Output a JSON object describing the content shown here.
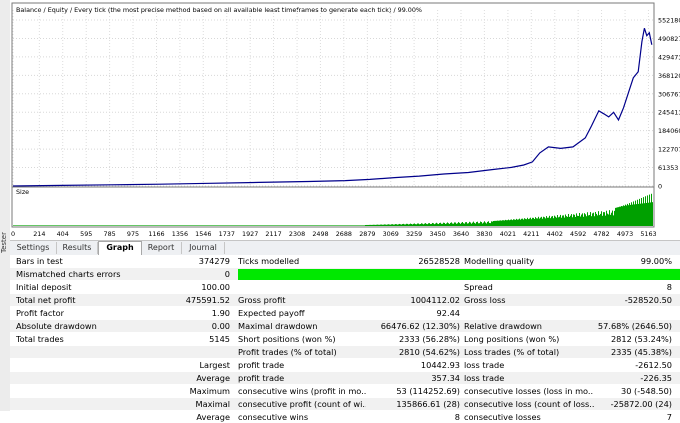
{
  "side_label": "Tester",
  "graph": {
    "header": "Balance / Equity / Every tick (the most precise method based on all available least timeframes to generate each tick) / 99.00%",
    "y_ticks": [
      "552180",
      "490827",
      "429473",
      "368120",
      "306767",
      "245413",
      "184060",
      "122707",
      "61353",
      "0"
    ],
    "size_label": "Size",
    "x_ticks": [
      "0",
      "214",
      "404",
      "595",
      "785",
      "975",
      "1166",
      "1356",
      "1546",
      "1737",
      "1927",
      "2117",
      "2308",
      "2498",
      "2688",
      "2879",
      "3069",
      "3259",
      "3450",
      "3640",
      "3830",
      "4021",
      "4211",
      "4402",
      "4592",
      "4782",
      "4973",
      "5163"
    ]
  },
  "chart_data": {
    "type": "line",
    "title": "Balance / Equity / Every tick (the most precise method based on all available least timeframes to generate each tick) / 99.00%",
    "xlim": [
      0,
      5200
    ],
    "ylim": [
      0,
      552180
    ],
    "series": [
      {
        "name": "Balance",
        "color": "#00008b",
        "x": [
          0,
          400,
          800,
          1200,
          1600,
          2000,
          2400,
          2700,
          2900,
          3100,
          3300,
          3500,
          3700,
          3900,
          4050,
          4150,
          4220,
          4280,
          4350,
          4450,
          4550,
          4650,
          4700,
          4760,
          4800,
          4840,
          4880,
          4920,
          4960,
          5000,
          5040,
          5080,
          5110,
          5130,
          5150,
          5170,
          5190
        ],
        "y": [
          0,
          2000,
          4000,
          6000,
          9000,
          12000,
          15000,
          18000,
          22000,
          28000,
          33000,
          40000,
          45000,
          55000,
          62000,
          70000,
          80000,
          110000,
          130000,
          125000,
          130000,
          160000,
          200000,
          250000,
          240000,
          230000,
          245000,
          220000,
          260000,
          310000,
          360000,
          380000,
          480000,
          525000,
          500000,
          510000,
          470000
        ]
      }
    ],
    "subchart": {
      "name": "Size",
      "color": "#00a000",
      "note": "position size histogram"
    }
  },
  "tabs": [
    {
      "label": "Settings",
      "active": false
    },
    {
      "label": "Results",
      "active": false
    },
    {
      "label": "Graph",
      "active": true
    },
    {
      "label": "Report",
      "active": false
    },
    {
      "label": "Journal",
      "active": false
    }
  ],
  "report": {
    "bars_in_test_label": "Bars in test",
    "bars_in_test": "374279",
    "ticks_modelled_label": "Ticks modelled",
    "ticks_modelled": "26528528",
    "modelling_quality_label": "Modelling quality",
    "modelling_quality": "99.00%",
    "mismatched_label": "Mismatched charts errors",
    "mismatched": "0",
    "initial_deposit_label": "Initial deposit",
    "initial_deposit": "100.00",
    "spread_label": "Spread",
    "spread": "8",
    "total_net_profit_label": "Total net profit",
    "total_net_profit": "475591.52",
    "gross_profit_label": "Gross profit",
    "gross_profit": "1004112.02",
    "gross_loss_label": "Gross loss",
    "gross_loss": "-528520.50",
    "profit_factor_label": "Profit factor",
    "profit_factor": "1.90",
    "expected_payoff_label": "Expected payoff",
    "expected_payoff": "92.44",
    "absolute_drawdown_label": "Absolute drawdown",
    "absolute_drawdown": "0.00",
    "maximal_drawdown_label": "Maximal drawdown",
    "maximal_drawdown": "66476.62 (12.30%)",
    "relative_drawdown_label": "Relative drawdown",
    "relative_drawdown": "57.68% (2646.50)",
    "total_trades_label": "Total trades",
    "total_trades": "5145",
    "short_positions_label": "Short positions (won %)",
    "short_positions": "2333 (56.28%)",
    "long_positions_label": "Long positions (won %)",
    "long_positions": "2812 (53.24%)",
    "profit_trades_label": "Profit trades (% of total)",
    "profit_trades": "2810 (54.62%)",
    "loss_trades_label": "Loss trades (% of total)",
    "loss_trades": "2335 (45.38%)",
    "largest_label": "Largest",
    "largest_profit_label": "profit trade",
    "largest_profit": "10442.93",
    "largest_loss_label": "loss trade",
    "largest_loss": "-2612.50",
    "average_label": "Average",
    "average_profit_label": "profit trade",
    "average_profit": "357.34",
    "average_loss_label": "loss trade",
    "average_loss": "-226.35",
    "maximum_label": "Maximum",
    "max_cons_wins_label": "consecutive wins (profit in mo...",
    "max_cons_wins": "53 (114252.69)",
    "max_cons_losses_label": "consecutive losses (loss in mo...",
    "max_cons_losses": "30 (-548.50)",
    "maximal_label": "Maximal",
    "maximal_cons_profit_label": "consecutive profit (count of wi...",
    "maximal_cons_profit": "135866.61 (28)",
    "maximal_cons_loss_label": "consecutive loss (count of loss...",
    "maximal_cons_loss": "-25872.00 (24)",
    "average2_label": "Average",
    "avg_cons_wins_label": "consecutive wins",
    "avg_cons_wins": "8",
    "avg_cons_losses_label": "consecutive losses",
    "avg_cons_losses": "7"
  }
}
